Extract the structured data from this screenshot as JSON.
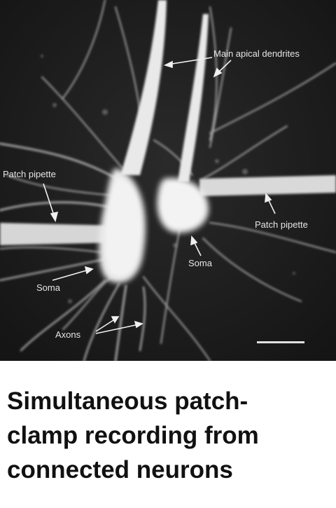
{
  "figure": {
    "labels": {
      "main_apical_dendrites": "Main apical dendrites",
      "patch_pipette_left": "Patch pipette",
      "patch_pipette_right": "Patch pipette",
      "soma_left": "Soma",
      "soma_right": "Soma",
      "axons": "Axons"
    },
    "colors": {
      "background": "#1f1f1f",
      "tissue": "#e8e8e8",
      "label_text": "#e6e6e6"
    }
  },
  "caption": {
    "line1": "Simultaneous patch-",
    "line2": "clamp recording from",
    "line3": "connected neurons"
  }
}
